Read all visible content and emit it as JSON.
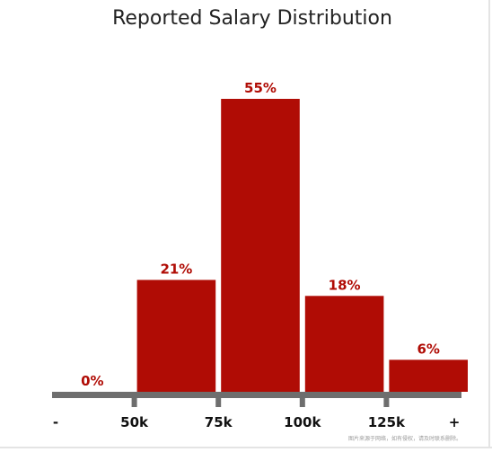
{
  "chart_data": {
    "type": "bar",
    "title": "Reported Salary Distribution",
    "categories": [
      "- to 50k",
      "50k to 75k",
      "75k to 100k",
      "100k to 125k",
      "125k to +"
    ],
    "values": [
      0,
      21,
      55,
      18,
      6
    ],
    "value_labels": [
      "0%",
      "21%",
      "55%",
      "18%",
      "6%"
    ],
    "tick_labels": [
      "-",
      "50k",
      "75k",
      "100k",
      "125k",
      "+"
    ],
    "ylim": [
      0,
      55
    ],
    "grid": false,
    "legend": "none",
    "colors": {
      "bar": "#b00c05",
      "value_label": "#b00c05",
      "axis": "#6e6e6e",
      "tick_label": "#111111",
      "title": "#222222"
    }
  },
  "watermark": "图片来源于网络，如有侵权，请及时联系删除。"
}
